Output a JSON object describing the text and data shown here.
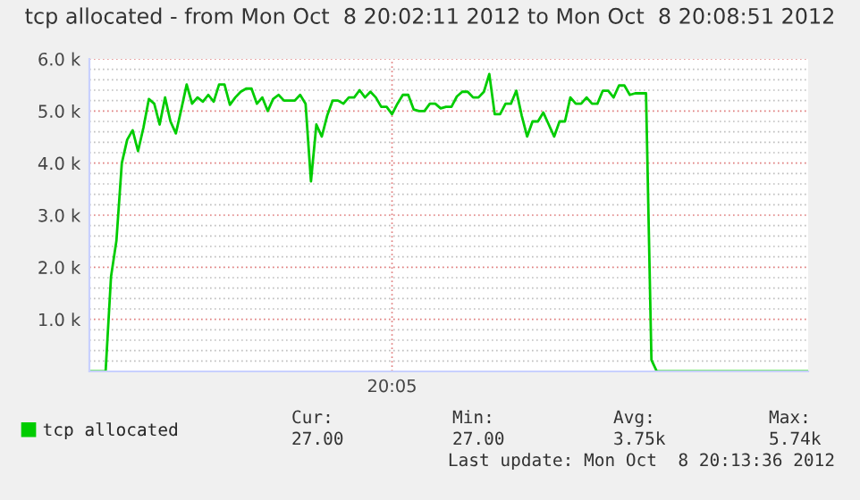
{
  "chart_data": {
    "type": "line",
    "title": "tcp allocated - from Mon Oct  8 20:02:11 2012 to Mon Oct  8 20:08:51 2012",
    "categories": [
      null,
      null,
      null,
      null,
      null,
      null,
      null,
      null,
      null,
      null,
      null,
      null,
      null,
      null,
      null,
      null,
      null,
      null,
      null,
      null,
      null,
      null,
      null,
      null,
      null,
      null,
      null,
      null,
      null,
      null,
      null,
      null,
      null,
      null,
      null,
      null,
      null,
      null,
      null,
      null,
      null,
      null,
      null,
      null,
      null,
      null,
      null,
      null,
      null,
      null,
      null,
      null,
      null,
      null,
      null,
      null,
      "20:05",
      null,
      null,
      null,
      null,
      null,
      null,
      null,
      null,
      null,
      null,
      null,
      null,
      null,
      null,
      null,
      null,
      null,
      null,
      null,
      null,
      null,
      null,
      null,
      null,
      null,
      null,
      null,
      null,
      null,
      null,
      null,
      null,
      null,
      null,
      null,
      null,
      null,
      null,
      null,
      null,
      null,
      null,
      null,
      null,
      null,
      null,
      null,
      null,
      null,
      null,
      null,
      null,
      null,
      null,
      null,
      null,
      null,
      null,
      null,
      null,
      null,
      null,
      null,
      null,
      null,
      null,
      null,
      null,
      null,
      null,
      null,
      null,
      null,
      null,
      null,
      null,
      null
    ],
    "series": [
      {
        "name": "tcp allocated",
        "color": "#00cc00",
        "values": [
          0,
          0,
          0,
          0,
          1820,
          2510,
          4000,
          4450,
          4630,
          4230,
          4680,
          5230,
          5140,
          4740,
          5260,
          4800,
          4570,
          5030,
          5510,
          5140,
          5260,
          5180,
          5310,
          5180,
          5510,
          5510,
          5120,
          5260,
          5370,
          5430,
          5430,
          5140,
          5260,
          5000,
          5230,
          5310,
          5200,
          5200,
          5200,
          5310,
          5140,
          3650,
          4740,
          4510,
          4910,
          5200,
          5200,
          5140,
          5260,
          5260,
          5400,
          5260,
          5370,
          5260,
          5080,
          5080,
          4940,
          5140,
          5310,
          5310,
          5030,
          5000,
          5000,
          5140,
          5140,
          5050,
          5080,
          5080,
          5280,
          5370,
          5370,
          5260,
          5260,
          5370,
          5710,
          4940,
          4940,
          5140,
          5140,
          5390,
          4910,
          4510,
          4800,
          4800,
          4970,
          4740,
          4510,
          4800,
          4800,
          5260,
          5140,
          5140,
          5260,
          5140,
          5140,
          5390,
          5390,
          5260,
          5490,
          5490,
          5310,
          5340,
          5340,
          5340,
          220,
          0,
          0,
          0,
          0,
          0,
          0,
          0,
          0,
          0,
          0,
          0,
          0,
          0,
          0,
          0,
          0,
          0,
          0,
          0,
          0,
          0,
          0,
          0,
          0,
          0,
          0,
          0,
          0,
          0
        ]
      }
    ],
    "ylim": [
      0,
      6000
    ],
    "yticks": [
      {
        "value": 200,
        "label": null
      },
      {
        "value": 400,
        "label": null
      },
      {
        "value": 600,
        "label": null
      },
      {
        "value": 800,
        "label": null
      },
      {
        "value": 1000,
        "label": "1.0 k"
      },
      {
        "value": 1200,
        "label": null
      },
      {
        "value": 1400,
        "label": null
      },
      {
        "value": 1600,
        "label": null
      },
      {
        "value": 1800,
        "label": null
      },
      {
        "value": 2000,
        "label": "2.0 k"
      },
      {
        "value": 2200,
        "label": null
      },
      {
        "value": 2400,
        "label": null
      },
      {
        "value": 2600,
        "label": null
      },
      {
        "value": 2800,
        "label": null
      },
      {
        "value": 3000,
        "label": "3.0 k"
      },
      {
        "value": 3200,
        "label": null
      },
      {
        "value": 3400,
        "label": null
      },
      {
        "value": 3600,
        "label": null
      },
      {
        "value": 3800,
        "label": null
      },
      {
        "value": 4000,
        "label": "4.0 k"
      },
      {
        "value": 4200,
        "label": null
      },
      {
        "value": 4400,
        "label": null
      },
      {
        "value": 4600,
        "label": null
      },
      {
        "value": 4800,
        "label": null
      },
      {
        "value": 5000,
        "label": "5.0 k"
      },
      {
        "value": 5200,
        "label": null
      },
      {
        "value": 5400,
        "label": null
      },
      {
        "value": 5600,
        "label": null
      },
      {
        "value": 5800,
        "label": null
      },
      {
        "value": 6000,
        "label": "6.0 k"
      }
    ],
    "grid": true,
    "legend": "bottom left",
    "annotations": [
      "Cur:",
      "Min:",
      "Avg:",
      "Max:",
      "27.00",
      "27.00",
      "3.75k",
      "5.74k",
      "Last update: Mon Oct  8 20:13:36 2012"
    ]
  }
}
